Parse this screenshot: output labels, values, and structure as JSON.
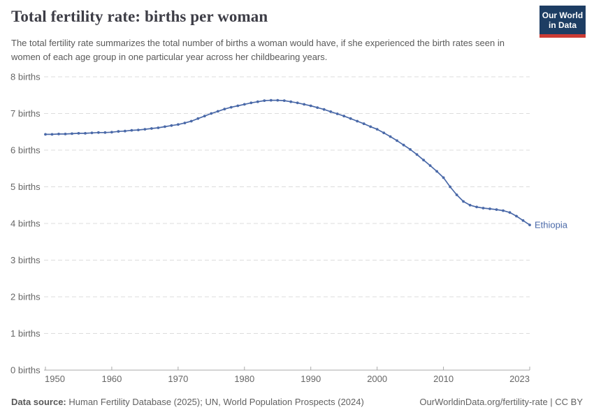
{
  "header": {
    "title": "Total fertility rate: births per woman",
    "subtitle": "The total fertility rate summarizes the total number of births a woman would have, if she experienced the birth rates seen in women of each age group in one particular year across her childbearing years."
  },
  "logo": {
    "line1": "Our World",
    "line2": "in Data"
  },
  "footer": {
    "source_label": "Data source:",
    "source_text": "Human Fertility Database (2025); UN, World Population Prospects (2024)",
    "attribution": "OurWorldinData.org/fertility-rate | CC BY"
  },
  "colors": {
    "series_blue": "#4a69a8",
    "grid_gray": "#dcdcdc",
    "axis_gray": "#a8a8a8",
    "tick_text_gray": "#666666",
    "logo_navy": "#1d3d63",
    "logo_red": "#cc3b34"
  },
  "chart_data": {
    "type": "line",
    "title": "Total fertility rate: births per woman",
    "entity": "Ethiopia",
    "xlabel": "",
    "ylabel": "births",
    "xlim": [
      1950,
      2023
    ],
    "ylim": [
      0,
      8
    ],
    "grid": "dashed-horizontal",
    "legend_position": "end-of-line-label",
    "x_ticks": [
      1950,
      1960,
      1970,
      1980,
      1990,
      2000,
      2010,
      2023
    ],
    "y_ticks": [
      0,
      1,
      2,
      3,
      4,
      5,
      6,
      7,
      8
    ],
    "y_tick_suffix": " births",
    "years": [
      1950,
      1951,
      1952,
      1953,
      1954,
      1955,
      1956,
      1957,
      1958,
      1959,
      1960,
      1961,
      1962,
      1963,
      1964,
      1965,
      1966,
      1967,
      1968,
      1969,
      1970,
      1971,
      1972,
      1973,
      1974,
      1975,
      1976,
      1977,
      1978,
      1979,
      1980,
      1981,
      1982,
      1983,
      1984,
      1985,
      1986,
      1987,
      1988,
      1989,
      1990,
      1991,
      1992,
      1993,
      1994,
      1995,
      1996,
      1997,
      1998,
      1999,
      2000,
      2001,
      2002,
      2003,
      2004,
      2005,
      2006,
      2007,
      2008,
      2009,
      2010,
      2011,
      2012,
      2013,
      2014,
      2015,
      2016,
      2017,
      2018,
      2019,
      2020,
      2021,
      2022,
      2023
    ],
    "series": [
      {
        "name": "Ethiopia",
        "values": [
          6.43,
          6.43,
          6.44,
          6.44,
          6.45,
          6.46,
          6.46,
          6.47,
          6.48,
          6.48,
          6.49,
          6.51,
          6.52,
          6.54,
          6.55,
          6.57,
          6.59,
          6.61,
          6.64,
          6.67,
          6.7,
          6.74,
          6.79,
          6.86,
          6.93,
          7.0,
          7.06,
          7.12,
          7.17,
          7.21,
          7.25,
          7.29,
          7.32,
          7.35,
          7.36,
          7.36,
          7.35,
          7.32,
          7.29,
          7.25,
          7.21,
          7.16,
          7.11,
          7.05,
          6.99,
          6.93,
          6.86,
          6.79,
          6.72,
          6.64,
          6.57,
          6.47,
          6.37,
          6.26,
          6.14,
          6.02,
          5.88,
          5.73,
          5.58,
          5.42,
          5.25,
          5.0,
          4.78,
          4.6,
          4.5,
          4.45,
          4.42,
          4.4,
          4.38,
          4.35,
          4.3,
          4.2,
          4.08,
          3.96
        ]
      }
    ]
  }
}
